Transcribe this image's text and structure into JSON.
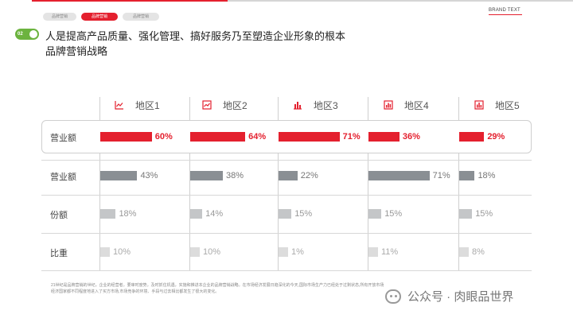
{
  "tabs": [
    {
      "label": "品牌营销",
      "active": false
    },
    {
      "label": "品牌营销",
      "active": true
    },
    {
      "label": "品牌营销",
      "active": false
    }
  ],
  "brand_text": "BRAND TEXT",
  "badge_number": "02",
  "title_line1": "人是提高产品质量、强化管理、搞好服务乃至塑造企业形象的根本",
  "title_line2": "品牌营销战略",
  "columns": [
    {
      "label": "地区1",
      "icon": "line-chart-icon"
    },
    {
      "label": "地区2",
      "icon": "area-chart-icon"
    },
    {
      "label": "地区3",
      "icon": "bar-chart-icon"
    },
    {
      "label": "地区4",
      "icon": "bar-chart-icon"
    },
    {
      "label": "地区5",
      "icon": "bar-chart-icon"
    }
  ],
  "chart_data": {
    "type": "bar",
    "categories": [
      "地区1",
      "地区2",
      "地区3",
      "地区4",
      "地区5"
    ],
    "series": [
      {
        "name": "营业额",
        "values": [
          60,
          64,
          71,
          36,
          29
        ],
        "labels": [
          "60%",
          "64%",
          "71%",
          "36%",
          "29%"
        ],
        "color": "#e4202e",
        "text_color": "#e4202e",
        "highlighted": true
      },
      {
        "name": "营业额",
        "values": [
          43,
          38,
          22,
          71,
          18
        ],
        "labels": [
          "43%",
          "38%",
          "22%",
          "71%",
          "18%"
        ],
        "color": "#8a8f94",
        "text_color": "#777777",
        "highlighted": false
      },
      {
        "name": "份额",
        "values": [
          18,
          14,
          15,
          15,
          15
        ],
        "labels": [
          "18%",
          "14%",
          "15%",
          "15%",
          "15%"
        ],
        "color": "#c4c6c8",
        "text_color": "#999999",
        "highlighted": false
      },
      {
        "name": "比重",
        "values": [
          10,
          10,
          1,
          11,
          8
        ],
        "labels": [
          "10%",
          "10%",
          "1%",
          "11%",
          "8%"
        ],
        "color": "#dcdcdc",
        "text_color": "#aaaaaa",
        "highlighted": false
      }
    ]
  },
  "footnote": "21世纪是品牌营销的世纪，企业的经营者，要审时度势，及时抓住机遇，实施和推进本企业的品牌营销战略。在市场经济发展日趋深化的今天,国际市场生产力已经处于过剩状态,所有开放市场经济国家都不同程度地进入了买方市场,市场竞争的环境、手段与过去相比都发生了很大的变化。",
  "watermark": "公众号 · 肉眼品世界"
}
